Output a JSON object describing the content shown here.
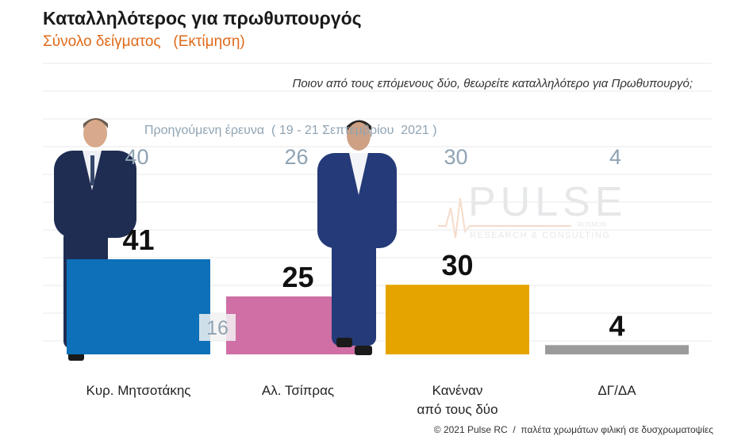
{
  "header": {
    "title": "Καταλληλότερος για πρωθυπουργός",
    "subtitle": "Σύνολο δείγματος   (Εκτίμηση)"
  },
  "question": "Ποιον από τους επόμενους δύο, θεωρείτε καταλληλότερο για Πρωθυπουργό;",
  "previous_survey_label": "Προηγούμενη έρευνα  ( 19 - 21 Σεπτεμβρίου  2021 )",
  "watermark": {
    "name": "PULSE",
    "tagline": "RESEARCH & CONSULTING",
    "small": "ROSMON"
  },
  "footer": "© 2021 Pulse RC  /  παλέτα χρωμάτων φιλική σε δυσχρωματοψίες",
  "chart_data": {
    "type": "bar",
    "categories": [
      "Κυρ. Μητσοτάκης",
      "Αλ. Τσίπρας",
      "Κανέναν από τους δύο",
      "ΔΓ/ΔΑ"
    ],
    "category_lines": [
      [
        "Κυρ. Μητσοτάκης"
      ],
      [
        "Αλ. Τσίπρας"
      ],
      [
        "Κανέναν",
        "από τους δύο"
      ],
      [
        "ΔΓ/ΔΑ"
      ]
    ],
    "series": [
      {
        "values": [
          41,
          25,
          30,
          4
        ]
      },
      {
        "values": [
          40,
          26,
          30,
          4
        ]
      }
    ],
    "colors": [
      "#0d70b8",
      "#cf6fa5",
      "#e6a400",
      "#9b9b9b"
    ],
    "previous_color": "#8fa3b3",
    "extra_annotation": "16",
    "ylim": [
      0,
      45
    ],
    "grid": true
  }
}
